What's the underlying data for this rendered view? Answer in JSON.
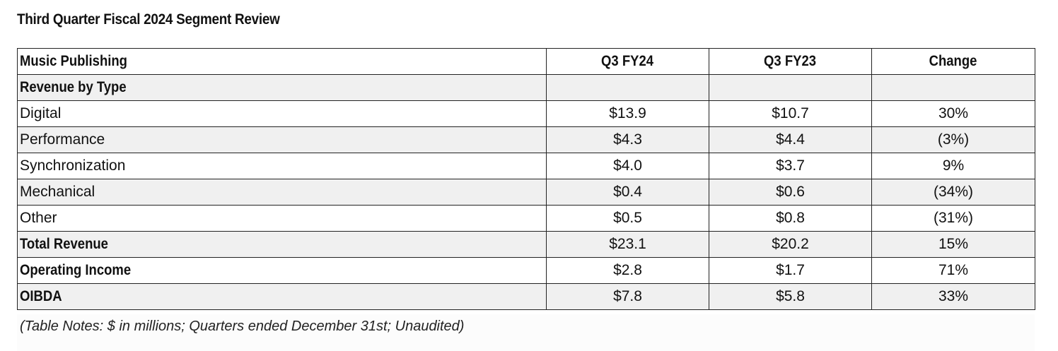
{
  "title": "Third Quarter Fiscal 2024 Segment Review",
  "table": {
    "headers": [
      "Music Publishing",
      "Q3 FY24",
      "Q3 FY23",
      "Change"
    ],
    "rows": [
      {
        "label": "Revenue by Type",
        "q3_fy24": "",
        "q3_fy23": "",
        "change": "",
        "bold": true
      },
      {
        "label": "Digital",
        "q3_fy24": "$13.9",
        "q3_fy23": "$10.7",
        "change": "30%",
        "bold": false
      },
      {
        "label": "Performance",
        "q3_fy24": "$4.3",
        "q3_fy23": "$4.4",
        "change": "(3%)",
        "bold": false
      },
      {
        "label": "Synchronization",
        "q3_fy24": "$4.0",
        "q3_fy23": "$3.7",
        "change": "9%",
        "bold": false
      },
      {
        "label": "Mechanical",
        "q3_fy24": "$0.4",
        "q3_fy23": "$0.6",
        "change": "(34%)",
        "bold": false
      },
      {
        "label": "Other",
        "q3_fy24": "$0.5",
        "q3_fy23": "$0.8",
        "change": "(31%)",
        "bold": false
      },
      {
        "label": "Total Revenue",
        "q3_fy24": "$23.1",
        "q3_fy23": "$20.2",
        "change": "15%",
        "bold": true
      },
      {
        "label": "Operating Income",
        "q3_fy24": "$2.8",
        "q3_fy23": "$1.7",
        "change": "71%",
        "bold": true
      },
      {
        "label": "OIBDA",
        "q3_fy24": "$7.8",
        "q3_fy23": "$5.8",
        "change": "33%",
        "bold": true
      }
    ]
  },
  "notes": "(Table Notes: $ in millions; Quarters ended December 31st; Unaudited)"
}
